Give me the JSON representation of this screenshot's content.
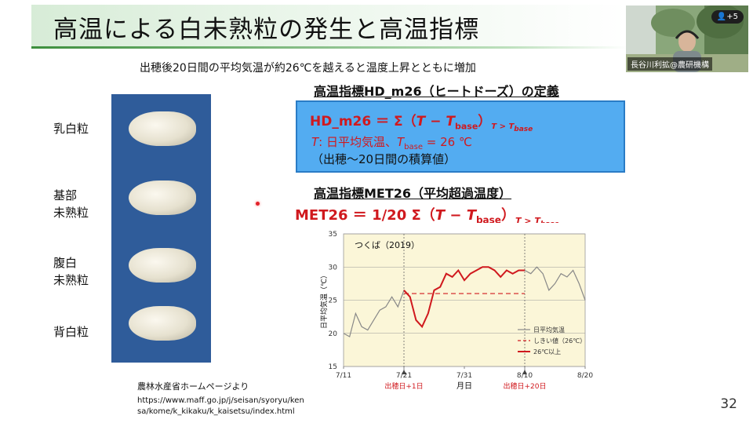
{
  "slide": {
    "title": "高温による白未熟粒の発生と高温指標",
    "subtitle": "出穂後20日間の平均気温が約26℃を越えると温度上昇とともに増加",
    "page_number": "32",
    "grain_labels": [
      {
        "line1": "乳白粒",
        "line2": ""
      },
      {
        "line1": "基部",
        "line2": "未熟粒"
      },
      {
        "line1": "腹白",
        "line2": "未熟粒"
      },
      {
        "line1": "背白粒",
        "line2": ""
      }
    ],
    "hd_heading": "高温指標HD_m26（ヒートドーズ）の定義",
    "hd_formula": {
      "lhs": "HD_m26 ＝ Σ（",
      "T": "T",
      "minus": " − ",
      "Tb": "T",
      "base": "base",
      "rparen": "）",
      "cond": "T > T",
      "cond_sub": "base"
    },
    "hd_def_line": {
      "T": "T",
      "text1": ": 日平均気温、",
      "Tb": "T",
      "base": "base",
      "text2": " = 26 ℃"
    },
    "hd_note": "（出穂〜20日間の積算値）",
    "met_heading": "高温指標MET26（平均超過温度）",
    "met_formula": {
      "lhs": "MET26 ＝ 1/20 Σ（",
      "T": "T",
      "minus": " − ",
      "Tb": "T",
      "base": "base",
      "rparen": "）",
      "cond": "T > T",
      "cond_sub": "base"
    },
    "source_title": "農林水産省ホームページより",
    "source_url_1": "https://www.maff.go.jp/j/seisan/syoryu/ken",
    "source_url_2": "sa/kome/k_kikaku/k_kaisetsu/index.html"
  },
  "meeting": {
    "participant_name": "長谷川利拡@農研機構",
    "participants_badge": "+5"
  },
  "colors": {
    "accent_red": "#d0191e",
    "box_blue": "#53acf1",
    "title_green": "#3d8f3d",
    "chart_bg": "#fbf6d8"
  },
  "chart_data": {
    "type": "line",
    "title": "つくば（2019）",
    "xlabel": "月日",
    "ylabel": "日平均気温（℃）",
    "ylim": [
      15,
      35
    ],
    "yticks": [
      15,
      20,
      25,
      30,
      35
    ],
    "xtick_labels": [
      "7/11",
      "7/21",
      "7/31",
      "8/10",
      "8/20"
    ],
    "xtick_days": [
      0,
      10,
      20,
      30,
      40
    ],
    "markers": [
      {
        "day": 10,
        "label": "出穂日+1日"
      },
      {
        "day": 30,
        "label": "出穂日+20日"
      }
    ],
    "legend": [
      "日平均気温",
      "しきい値（26℃）",
      "26℃以上"
    ],
    "legend_position": "bottom-right",
    "threshold": 26,
    "threshold_range_days": [
      10,
      30
    ],
    "series": [
      {
        "name": "日平均気温",
        "x": [
          0,
          1,
          2,
          3,
          4,
          5,
          6,
          7,
          8,
          9,
          10,
          11,
          12,
          13,
          14,
          15,
          16,
          17,
          18,
          19,
          20,
          21,
          22,
          23,
          24,
          25,
          26,
          27,
          28,
          29,
          30,
          31,
          32,
          33,
          34,
          35,
          36,
          37,
          38,
          39,
          40
        ],
        "y": [
          20,
          19.5,
          23,
          21,
          20.5,
          22,
          23.5,
          24,
          25.5,
          24,
          26.5,
          25.5,
          22,
          21,
          23,
          26.5,
          27,
          29,
          28.5,
          29.5,
          28,
          29,
          29.5,
          30,
          30,
          29.5,
          28.5,
          29.5,
          29,
          29.5,
          29.5,
          29,
          30,
          29,
          26.5,
          27.5,
          29,
          28.5,
          29.5,
          27.5,
          25
        ]
      }
    ]
  }
}
